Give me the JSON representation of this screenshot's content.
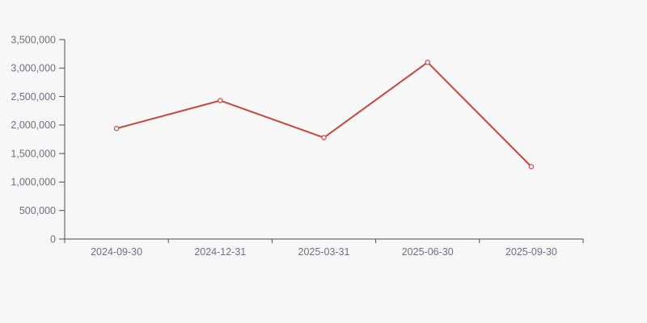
{
  "chart": {
    "background_color": "#f7f7f7",
    "line_color": "#c6473e",
    "marker_fill_color": "#fdfcfc",
    "axis_color": "#4e4e4e",
    "label_color": "#6e7079"
  },
  "chart_data": {
    "type": "line",
    "title": "",
    "xlabel": "",
    "ylabel": "",
    "categories": [
      "2024-09-30",
      "2024-12-31",
      "2025-03-31",
      "2025-06-30",
      "2025-09-30"
    ],
    "series": [
      {
        "name": "value",
        "values": [
          1940000,
          2430000,
          1780000,
          3100000,
          1270000
        ]
      }
    ],
    "ylim": [
      0,
      3500000
    ],
    "y_tick_interval": 500000,
    "y_tick_labels": [
      "0",
      "500,000",
      "1,000,000",
      "1,500,000",
      "2,000,000",
      "2,500,000",
      "3,000,000",
      "3,500,000"
    ],
    "grid": false,
    "legend_visible": false,
    "marker_style": "open-circle",
    "x_axis_boundary_ticks": true
  }
}
